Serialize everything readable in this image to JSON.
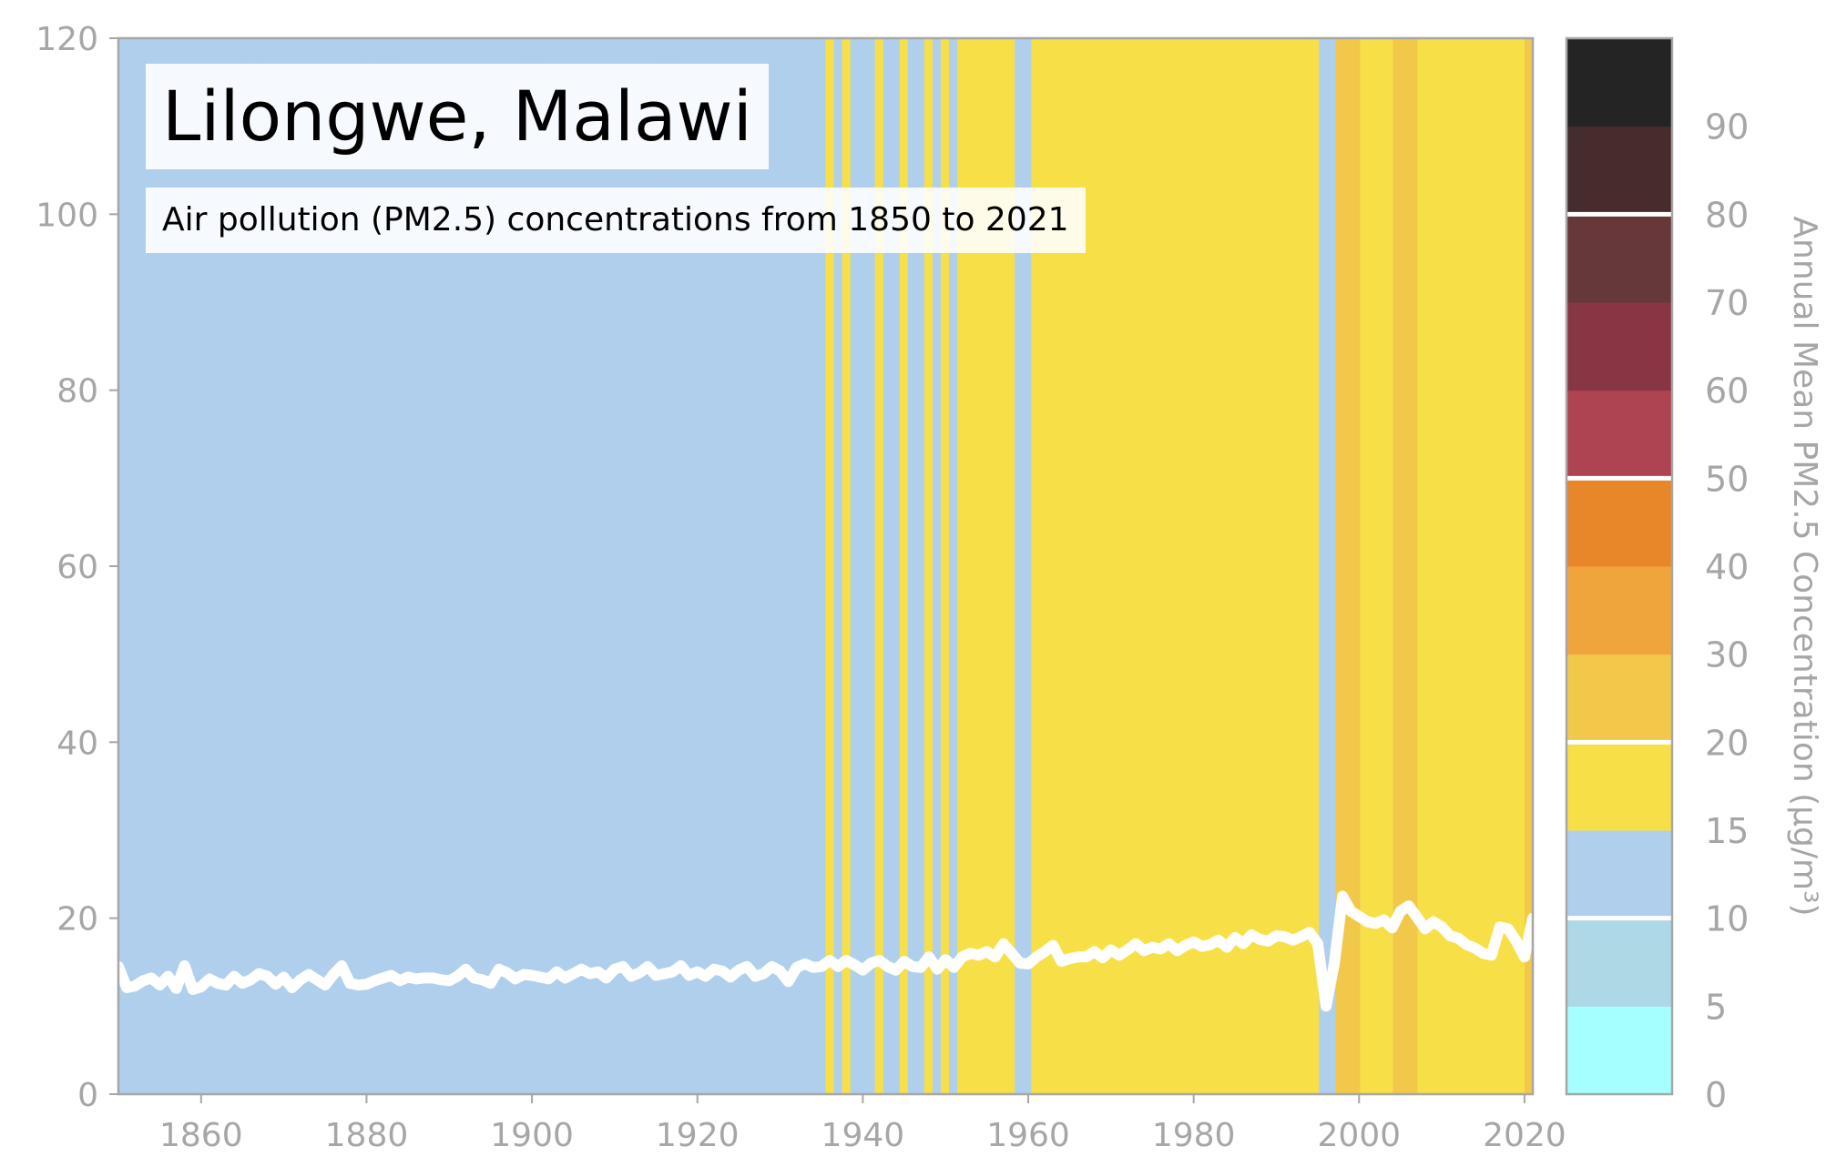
{
  "chart_data": {
    "type": "line",
    "title": "Lilongwe, Malawi",
    "subtitle": "Air pollution (PM2.5) concentrations from 1850 to 2021",
    "xlim": [
      1850,
      2021
    ],
    "ylim": [
      0,
      120
    ],
    "x_ticks": [
      1860,
      1880,
      1900,
      1920,
      1940,
      1960,
      1980,
      2000,
      2020
    ],
    "y_ticks": [
      0,
      20,
      40,
      60,
      80,
      100,
      120
    ],
    "grid": false,
    "series": [
      {
        "color": "#ffffff",
        "x": [
          1850,
          1851,
          1852,
          1853,
          1854,
          1855,
          1856,
          1857,
          1858,
          1859,
          1860,
          1861,
          1862,
          1863,
          1864,
          1865,
          1866,
          1867,
          1868,
          1869,
          1870,
          1871,
          1872,
          1873,
          1874,
          1875,
          1876,
          1877,
          1878,
          1879,
          1880,
          1881,
          1882,
          1883,
          1884,
          1885,
          1886,
          1887,
          1888,
          1889,
          1890,
          1891,
          1892,
          1893,
          1894,
          1895,
          1896,
          1897,
          1898,
          1899,
          1900,
          1901,
          1902,
          1903,
          1904,
          1905,
          1906,
          1907,
          1908,
          1909,
          1910,
          1911,
          1912,
          1913,
          1914,
          1915,
          1916,
          1917,
          1918,
          1919,
          1920,
          1921,
          1922,
          1923,
          1924,
          1925,
          1926,
          1927,
          1928,
          1929,
          1930,
          1931,
          1932,
          1933,
          1934,
          1935,
          1936,
          1937,
          1938,
          1939,
          1940,
          1941,
          1942,
          1943,
          1944,
          1945,
          1946,
          1947,
          1948,
          1949,
          1950,
          1951,
          1952,
          1953,
          1954,
          1955,
          1956,
          1957,
          1958,
          1959,
          1960,
          1961,
          1962,
          1963,
          1964,
          1965,
          1966,
          1967,
          1968,
          1969,
          1970,
          1971,
          1972,
          1973,
          1974,
          1975,
          1976,
          1977,
          1978,
          1979,
          1980,
          1981,
          1982,
          1983,
          1984,
          1985,
          1986,
          1987,
          1988,
          1989,
          1990,
          1991,
          1992,
          1993,
          1994,
          1995,
          1996,
          1997,
          1998,
          1999,
          2000,
          2001,
          2002,
          2003,
          2004,
          2005,
          2006,
          2007,
          2008,
          2009,
          2010,
          2011,
          2012,
          2013,
          2014,
          2015,
          2016,
          2017,
          2018,
          2019,
          2020,
          2021
        ],
        "y": [
          14.5,
          12.1,
          12.3,
          12.9,
          13.2,
          12.4,
          13.4,
          12.0,
          14.6,
          11.9,
          12.2,
          13.1,
          12.6,
          12.4,
          13.4,
          12.6,
          13.0,
          13.7,
          13.4,
          12.5,
          13.3,
          12.1,
          13.0,
          13.6,
          13.0,
          12.4,
          13.6,
          14.6,
          12.6,
          12.4,
          12.5,
          12.9,
          13.2,
          13.5,
          12.9,
          13.3,
          13.1,
          13.2,
          13.2,
          13.0,
          12.9,
          13.4,
          14.2,
          13.2,
          13.0,
          12.6,
          14.2,
          13.8,
          13.1,
          13.6,
          13.5,
          13.3,
          13.1,
          13.9,
          13.2,
          13.7,
          14.2,
          13.7,
          13.9,
          13.2,
          14.2,
          14.5,
          13.4,
          13.8,
          14.5,
          13.5,
          13.7,
          13.9,
          14.6,
          13.5,
          13.9,
          13.4,
          14.2,
          14.0,
          13.3,
          14.1,
          14.5,
          13.4,
          13.7,
          14.5,
          14.0,
          12.8,
          14.4,
          14.8,
          14.4,
          14.5,
          15.2,
          14.5,
          15.2,
          14.7,
          14.1,
          14.9,
          15.2,
          14.5,
          14.1,
          15.1,
          14.5,
          14.4,
          15.6,
          14.2,
          15.3,
          14.4,
          15.6,
          16.0,
          15.8,
          16.2,
          15.6,
          17.1,
          16.0,
          14.9,
          14.8,
          15.6,
          16.2,
          16.9,
          15.1,
          15.4,
          15.6,
          15.6,
          16.2,
          15.5,
          16.4,
          15.8,
          16.4,
          17.1,
          16.3,
          16.7,
          16.5,
          17.1,
          16.3,
          16.9,
          17.3,
          16.8,
          17.0,
          17.5,
          16.7,
          17.8,
          17.1,
          18.1,
          17.6,
          17.4,
          18.0,
          17.9,
          17.5,
          17.9,
          18.4,
          17.1,
          10.0,
          14.8,
          22.5,
          20.8,
          20.2,
          19.6,
          19.4,
          19.8,
          18.9,
          20.8,
          21.4,
          20.1,
          18.8,
          19.6,
          19.0,
          18.0,
          17.7,
          17.0,
          16.6,
          16.0,
          15.8,
          19.0,
          18.8,
          17.4,
          15.6,
          20.0
        ]
      }
    ],
    "stripe_bands": [
      {
        "from": 0,
        "to": 5,
        "color": "#a6ffff"
      },
      {
        "from": 5,
        "to": 10,
        "color": "#add8e6"
      },
      {
        "from": 10,
        "to": 15,
        "color": "#b0cfec"
      },
      {
        "from": 15,
        "to": 20,
        "color": "#f7e047"
      },
      {
        "from": 20,
        "to": 25,
        "color": "#f2c84b"
      },
      {
        "from": 25,
        "to": 30,
        "color": "#f0a43c"
      },
      {
        "from": 30,
        "to": 35,
        "color": "#e8872a"
      },
      {
        "from": 35,
        "to": 40,
        "color": "#ae4452"
      },
      {
        "from": 40,
        "to": 45,
        "color": "#883644"
      },
      {
        "from": 45,
        "to": 50,
        "color": "#67383a"
      },
      {
        "from": 50,
        "to": 55,
        "color": "#472c2e"
      },
      {
        "from": 55,
        "to": 60,
        "color": "#242424"
      }
    ],
    "colorbar": {
      "label": "Annual Mean PM2.5 Concentration (μg/m³)",
      "ticks": [
        "0",
        "5",
        "10",
        "15",
        "20",
        "30",
        "40",
        "50",
        "60",
        "70",
        "80",
        "90"
      ],
      "white_lines_after_band": [
        1,
        3,
        6,
        9
      ]
    }
  }
}
